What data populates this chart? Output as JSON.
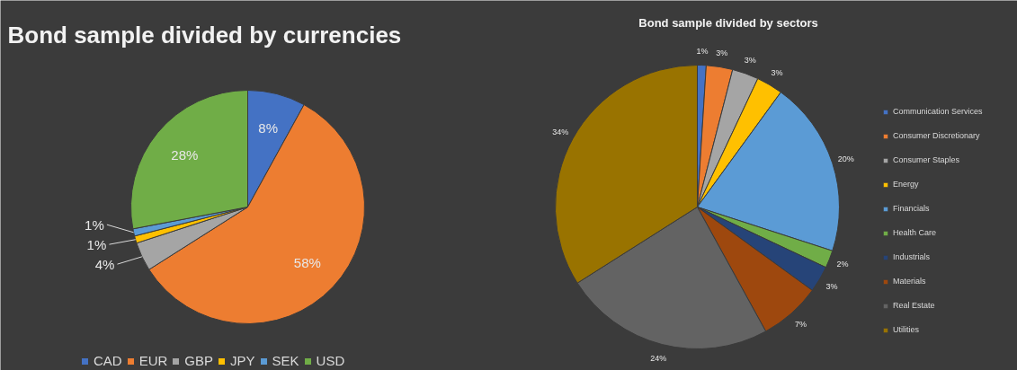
{
  "chart_data": [
    {
      "type": "pie",
      "title": "Bond sample divided by currencies",
      "legend": "bottom",
      "categories": [
        "CAD",
        "EUR",
        "GBP",
        "JPY",
        "SEK",
        "USD"
      ],
      "values": [
        8,
        58,
        4,
        1,
        1,
        28
      ],
      "value_labels": [
        "8%",
        "58%",
        "4%",
        "1%",
        "1%",
        "28%"
      ],
      "colors": [
        "#4472c4",
        "#ed7d31",
        "#a5a5a5",
        "#ffc000",
        "#5b9bd5",
        "#70ad47"
      ]
    },
    {
      "type": "pie",
      "title": "Bond sample divided by sectors",
      "legend": "right",
      "categories": [
        "Communication Services",
        "Consumer Discretionary",
        "Consumer Staples",
        "Energy",
        "Financials",
        "Health Care",
        "Industrials",
        "Materials",
        "Real Estate",
        "Utilities"
      ],
      "values": [
        1,
        3,
        3,
        3,
        20,
        2,
        3,
        7,
        24,
        34
      ],
      "value_labels": [
        "1%",
        "3%",
        "3%",
        "3%",
        "20%",
        "2%",
        "3%",
        "7%",
        "24%",
        "34%"
      ],
      "colors": [
        "#4472c4",
        "#ed7d31",
        "#a5a5a5",
        "#ffc000",
        "#5b9bd5",
        "#70ad47",
        "#264478",
        "#9e480e",
        "#636363",
        "#997300"
      ]
    }
  ]
}
